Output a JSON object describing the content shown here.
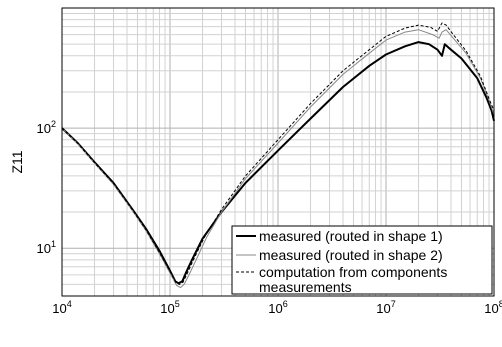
{
  "chart_data": {
    "type": "line",
    "xscale": "log",
    "yscale": "log",
    "xlim": [
      10000,
      100000000
    ],
    "ylim": [
      4,
      1000
    ],
    "grid": true,
    "ylabel": "Z11",
    "legend_position": "bottom-right",
    "x_ticks": [
      {
        "value": 10000,
        "base": "10",
        "exp": "4"
      },
      {
        "value": 100000,
        "base": "10",
        "exp": "5"
      },
      {
        "value": 1000000,
        "base": "10",
        "exp": "6"
      },
      {
        "value": 10000000,
        "base": "10",
        "exp": "7"
      },
      {
        "value": 100000000,
        "base": "10",
        "exp": "8"
      }
    ],
    "y_ticks": [
      {
        "value": 10,
        "base": "10",
        "exp": "1"
      },
      {
        "value": 100,
        "base": "10",
        "exp": "2"
      }
    ],
    "series": [
      {
        "name": "measured (routed in shape 1)",
        "color": "#000000",
        "dash": "solid",
        "width": 2,
        "points": [
          [
            10000,
            100
          ],
          [
            14000,
            75
          ],
          [
            20000,
            52
          ],
          [
            30000,
            35
          ],
          [
            45000,
            21
          ],
          [
            60000,
            14.5
          ],
          [
            80000,
            9.5
          ],
          [
            100000,
            6.5
          ],
          [
            112000,
            5.3
          ],
          [
            120000,
            5.1
          ],
          [
            130000,
            5.3
          ],
          [
            140000,
            6.2
          ],
          [
            160000,
            8
          ],
          [
            200000,
            12
          ],
          [
            300000,
            20
          ],
          [
            500000,
            35
          ],
          [
            1000000,
            65
          ],
          [
            2000000,
            120
          ],
          [
            4000000,
            220
          ],
          [
            7000000,
            330
          ],
          [
            10000000,
            410
          ],
          [
            15000000,
            480
          ],
          [
            20000000,
            520
          ],
          [
            25000000,
            500
          ],
          [
            30000000,
            450
          ],
          [
            33000000,
            400
          ],
          [
            35000000,
            500
          ],
          [
            40000000,
            450
          ],
          [
            50000000,
            380
          ],
          [
            70000000,
            260
          ],
          [
            85000000,
            180
          ],
          [
            95000000,
            140
          ],
          [
            100000000,
            115
          ]
        ]
      },
      {
        "name": "measured (routed in shape 2)",
        "color": "#888888",
        "dash": "solid",
        "width": 1,
        "points": [
          [
            10000,
            100
          ],
          [
            14000,
            74
          ],
          [
            20000,
            51
          ],
          [
            30000,
            34
          ],
          [
            45000,
            20.5
          ],
          [
            60000,
            14
          ],
          [
            80000,
            9
          ],
          [
            100000,
            6.2
          ],
          [
            115000,
            4.9
          ],
          [
            125000,
            4.7
          ],
          [
            135000,
            5
          ],
          [
            150000,
            6
          ],
          [
            180000,
            8.5
          ],
          [
            220000,
            12.5
          ],
          [
            300000,
            20
          ],
          [
            500000,
            38
          ],
          [
            1000000,
            75
          ],
          [
            2000000,
            150
          ],
          [
            4000000,
            280
          ],
          [
            7000000,
            420
          ],
          [
            10000000,
            540
          ],
          [
            15000000,
            630
          ],
          [
            20000000,
            660
          ],
          [
            27000000,
            600
          ],
          [
            31000000,
            560
          ],
          [
            33000000,
            630
          ],
          [
            36000000,
            660
          ],
          [
            42000000,
            560
          ],
          [
            55000000,
            420
          ],
          [
            75000000,
            260
          ],
          [
            90000000,
            170
          ],
          [
            100000000,
            130
          ]
        ]
      },
      {
        "name": "computation from components measurements",
        "color": "#000000",
        "dash": "3,2",
        "width": 1,
        "points": [
          [
            10000,
            100
          ],
          [
            14000,
            74.5
          ],
          [
            20000,
            51.5
          ],
          [
            30000,
            34.5
          ],
          [
            45000,
            20.8
          ],
          [
            60000,
            14.2
          ],
          [
            80000,
            9.2
          ],
          [
            100000,
            6.4
          ],
          [
            113000,
            5.2
          ],
          [
            122000,
            5
          ],
          [
            132000,
            5.2
          ],
          [
            145000,
            6.2
          ],
          [
            170000,
            8.5
          ],
          [
            210000,
            12.5
          ],
          [
            300000,
            21
          ],
          [
            500000,
            40
          ],
          [
            1000000,
            80
          ],
          [
            2000000,
            160
          ],
          [
            4000000,
            300
          ],
          [
            7000000,
            450
          ],
          [
            10000000,
            580
          ],
          [
            15000000,
            680
          ],
          [
            20000000,
            720
          ],
          [
            26000000,
            690
          ],
          [
            30000000,
            640
          ],
          [
            33000000,
            750
          ],
          [
            36000000,
            720
          ],
          [
            42000000,
            600
          ],
          [
            55000000,
            440
          ],
          [
            75000000,
            270
          ],
          [
            90000000,
            175
          ],
          [
            100000000,
            140
          ]
        ]
      }
    ]
  }
}
